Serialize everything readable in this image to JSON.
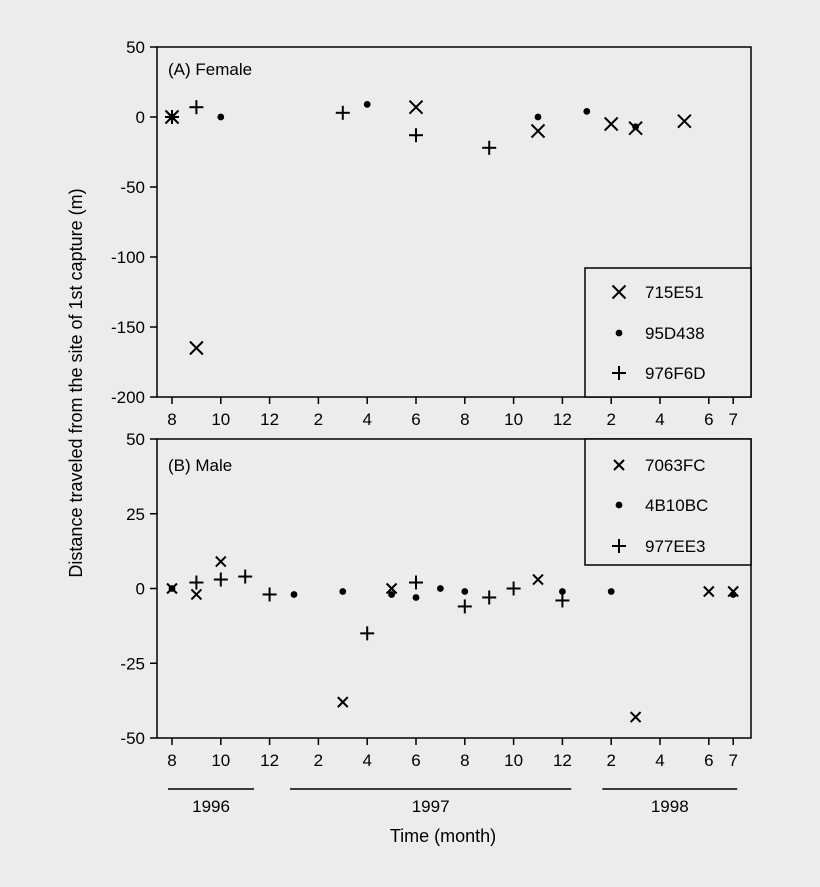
{
  "chart_data": [
    {
      "type": "scatter",
      "panel_label": "(A) Female",
      "ylabel": "Distance traveled from the site of 1st capture (m)",
      "ylim": [
        -200,
        50
      ],
      "yticks": [
        "50",
        "0",
        "-50",
        "-100",
        "-150",
        "-200"
      ],
      "x_unit": "month index (0 = Aug 1996)",
      "xticks": [
        {
          "m": 0,
          "label": "8"
        },
        {
          "m": 2,
          "label": "10"
        },
        {
          "m": 4,
          "label": "12"
        },
        {
          "m": 6,
          "label": "2"
        },
        {
          "m": 8,
          "label": "4"
        },
        {
          "m": 10,
          "label": "6"
        },
        {
          "m": 12,
          "label": "8"
        },
        {
          "m": 14,
          "label": "10"
        },
        {
          "m": 16,
          "label": "12"
        },
        {
          "m": 18,
          "label": "2"
        },
        {
          "m": 20,
          "label": "4"
        },
        {
          "m": 22,
          "label": "6"
        },
        {
          "m": 23,
          "label": "7"
        }
      ],
      "series": [
        {
          "name": "715E51",
          "marker": "x-large",
          "points": [
            [
              0,
              0
            ],
            [
              1,
              -165
            ],
            [
              10,
              7
            ],
            [
              15,
              -10
            ],
            [
              18,
              -5
            ],
            [
              19,
              -8
            ],
            [
              21,
              -3
            ]
          ]
        },
        {
          "name": "95D438",
          "marker": "dot",
          "points": [
            [
              0,
              0
            ],
            [
              2,
              0
            ],
            [
              8,
              9
            ],
            [
              15,
              0
            ],
            [
              17,
              4
            ],
            [
              19,
              -7
            ]
          ]
        },
        {
          "name": "976F6D",
          "marker": "plus",
          "points": [
            [
              0,
              0
            ],
            [
              1,
              7
            ],
            [
              7,
              3
            ],
            [
              10,
              -13
            ],
            [
              13,
              -22
            ]
          ]
        }
      ]
    },
    {
      "type": "scatter",
      "panel_label": "(B) Male",
      "ylim": [
        -50,
        50
      ],
      "yticks": [
        "50",
        "25",
        "0",
        "-25",
        "-50"
      ],
      "xticks": [
        {
          "m": 0,
          "label": "8"
        },
        {
          "m": 2,
          "label": "10"
        },
        {
          "m": 4,
          "label": "12"
        },
        {
          "m": 6,
          "label": "2"
        },
        {
          "m": 8,
          "label": "4"
        },
        {
          "m": 10,
          "label": "6"
        },
        {
          "m": 12,
          "label": "8"
        },
        {
          "m": 14,
          "label": "10"
        },
        {
          "m": 16,
          "label": "12"
        },
        {
          "m": 18,
          "label": "2"
        },
        {
          "m": 20,
          "label": "4"
        },
        {
          "m": 22,
          "label": "6"
        },
        {
          "m": 23,
          "label": "7"
        }
      ],
      "year_groups": [
        {
          "label": "1996",
          "from": 0,
          "to": 3.2
        },
        {
          "label": "1997",
          "from": 5,
          "to": 16.2
        },
        {
          "label": "1998",
          "from": 17.8,
          "to": 23
        }
      ],
      "xlabel": "Time (month)",
      "series": [
        {
          "name": "7063FC",
          "marker": "x-small",
          "points": [
            [
              0,
              0
            ],
            [
              1,
              -2
            ],
            [
              2,
              9
            ],
            [
              7,
              -38
            ],
            [
              9,
              0
            ],
            [
              15,
              3
            ],
            [
              19,
              -43
            ],
            [
              22,
              -1
            ],
            [
              23,
              -1
            ]
          ]
        },
        {
          "name": "4B10BC",
          "marker": "dot",
          "points": [
            [
              0,
              0
            ],
            [
              5,
              -2
            ],
            [
              7,
              -1
            ],
            [
              9,
              -2
            ],
            [
              10,
              -3
            ],
            [
              11,
              0
            ],
            [
              12,
              -1
            ],
            [
              16,
              -1
            ],
            [
              18,
              -1
            ],
            [
              23,
              -2
            ]
          ]
        },
        {
          "name": "977EE3",
          "marker": "plus",
          "points": [
            [
              1,
              2
            ],
            [
              2,
              3
            ],
            [
              3,
              4
            ],
            [
              4,
              -2
            ],
            [
              8,
              -15
            ],
            [
              10,
              2
            ],
            [
              12,
              -6
            ],
            [
              13,
              -3
            ],
            [
              14,
              0
            ],
            [
              16,
              -4
            ]
          ]
        }
      ]
    }
  ]
}
